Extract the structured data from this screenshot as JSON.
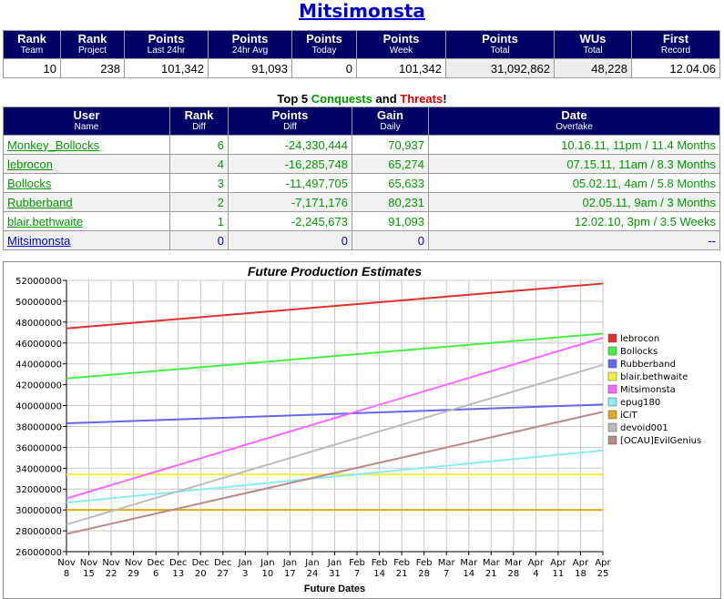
{
  "page": {
    "title": "Mitsimonsta"
  },
  "rank_table": {
    "headers": [
      {
        "main": "Rank",
        "sub": "Team"
      },
      {
        "main": "Rank",
        "sub": "Project"
      },
      {
        "main": "Points",
        "sub": "Last 24hr"
      },
      {
        "main": "Points",
        "sub": "24hr Avg"
      },
      {
        "main": "Points",
        "sub": "Today"
      },
      {
        "main": "Points",
        "sub": "Week"
      },
      {
        "main": "Points",
        "sub": "Total"
      },
      {
        "main": "WUs",
        "sub": "Total"
      },
      {
        "main": "First",
        "sub": "Record"
      }
    ],
    "values": [
      "10",
      "238",
      "101,342",
      "91,093",
      "0",
      "101,342",
      "31,092,862",
      "48,228",
      "12.04.06"
    ]
  },
  "top5": {
    "prefix": "Top 5 ",
    "conquests": "Conquests",
    "and": " and ",
    "threats": "Threats",
    "suffix": "!"
  },
  "rival_table": {
    "headers": [
      {
        "main": "User",
        "sub": "Name"
      },
      {
        "main": "Rank",
        "sub": "Diff"
      },
      {
        "main": "Points",
        "sub": "Diff"
      },
      {
        "main": "Gain",
        "sub": "Daily"
      },
      {
        "main": "Date",
        "sub": "Overtake"
      }
    ],
    "rows": [
      {
        "name": "Monkey_Bollocks",
        "rank_diff": "6",
        "points_diff": "-24,330,444",
        "gain": "70,937",
        "overtake": "10.16.11, 11pm / 11.4 Months"
      },
      {
        "name": "lebrocon",
        "rank_diff": "4",
        "points_diff": "-16,285,748",
        "gain": "65,274",
        "overtake": "07.15.11, 11am / 8.3 Months"
      },
      {
        "name": "Bollocks",
        "rank_diff": "3",
        "points_diff": "-11,497,705",
        "gain": "65,633",
        "overtake": "05.02.11, 4am / 5.8 Months"
      },
      {
        "name": "Rubberband",
        "rank_diff": "2",
        "points_diff": "-7,171,176",
        "gain": "80,231",
        "overtake": "02.05.11, 9am / 3 Months"
      },
      {
        "name": "blair.bethwaite",
        "rank_diff": "1",
        "points_diff": "-2,245,673",
        "gain": "91,093",
        "overtake": "12.02.10, 3pm / 3.5 Weeks"
      },
      {
        "name": "Mitsimonsta",
        "rank_diff": "0",
        "points_diff": "0",
        "gain": "0",
        "overtake": "--"
      }
    ]
  },
  "chart_data": {
    "type": "line",
    "title": "Future Production Estimates",
    "xlabel": "Future Dates",
    "ylabel": "",
    "ylim": [
      26000000,
      52000000
    ],
    "yticks": [
      "52000000",
      "50000000",
      "48000000",
      "46000000",
      "44000000",
      "42000000",
      "40000000",
      "38000000",
      "36000000",
      "34000000",
      "32000000",
      "30000000",
      "28000000",
      "26000000"
    ],
    "x": [
      [
        "Nov",
        "8"
      ],
      [
        "Nov",
        "15"
      ],
      [
        "Nov",
        "22"
      ],
      [
        "Nov",
        "29"
      ],
      [
        "Dec",
        "6"
      ],
      [
        "Dec",
        "13"
      ],
      [
        "Dec",
        "20"
      ],
      [
        "Dec",
        "27"
      ],
      [
        "Jan",
        "3"
      ],
      [
        "Jan",
        "10"
      ],
      [
        "Jan",
        "17"
      ],
      [
        "Jan",
        "24"
      ],
      [
        "Jan",
        "31"
      ],
      [
        "Feb",
        "7"
      ],
      [
        "Feb",
        "14"
      ],
      [
        "Feb",
        "21"
      ],
      [
        "Feb",
        "28"
      ],
      [
        "Mar",
        "7"
      ],
      [
        "Mar",
        "14"
      ],
      [
        "Mar",
        "21"
      ],
      [
        "Mar",
        "28"
      ],
      [
        "Apr",
        "4"
      ],
      [
        "Apr",
        "11"
      ],
      [
        "Apr",
        "18"
      ],
      [
        "Apr",
        "25"
      ]
    ],
    "grid": true,
    "legend_position": "right",
    "series": [
      {
        "name": "lebrocon",
        "color": "#e03030",
        "start": 47400000,
        "end": 51700000
      },
      {
        "name": "Bollocks",
        "color": "#44ee44",
        "start": 42600000,
        "end": 46900000
      },
      {
        "name": "Rubberband",
        "color": "#6666ee",
        "start": 38300000,
        "end": 40100000
      },
      {
        "name": "blair.bethwaite",
        "color": "#eeee44",
        "start": 33400000,
        "end": 33400000
      },
      {
        "name": "Mitsimonsta",
        "color": "#ff66ff",
        "start": 31100000,
        "end": 46500000
      },
      {
        "name": "epug180",
        "color": "#88eeee",
        "start": 30700000,
        "end": 35700000
      },
      {
        "name": "iCiT",
        "color": "#ddaa22",
        "start": 30000000,
        "end": 30000000
      },
      {
        "name": "devoid001",
        "color": "#bbbbbb",
        "start": 28600000,
        "end": 43900000
      },
      {
        "name": "[OCAU]EvilGenius",
        "color": "#bb8888",
        "start": 27700000,
        "end": 39400000
      }
    ]
  }
}
